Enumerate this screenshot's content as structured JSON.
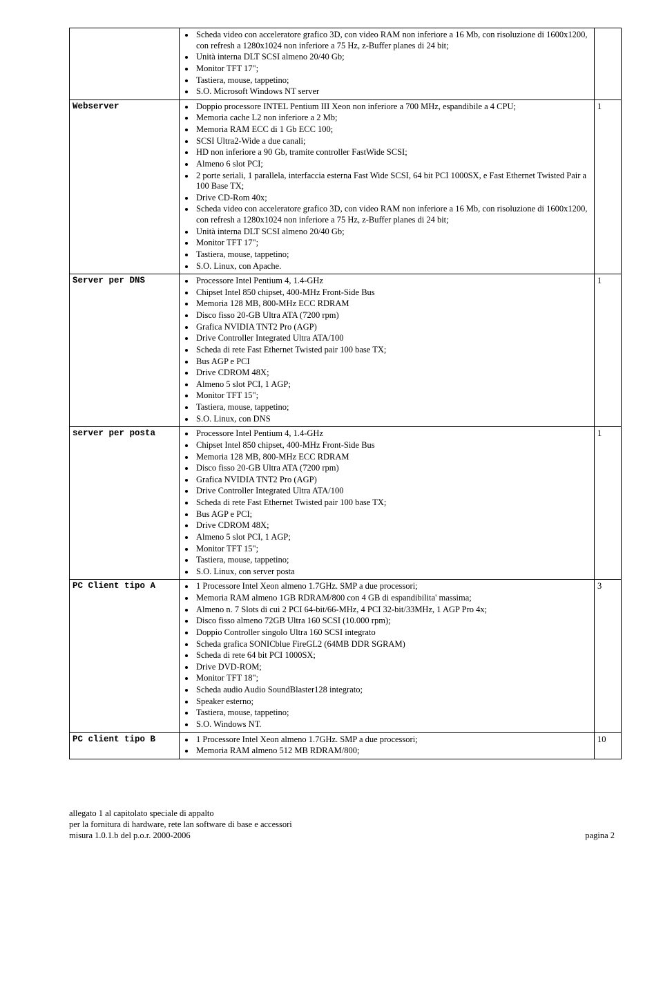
{
  "rows": [
    {
      "label": "",
      "qty": "",
      "items": [
        "Scheda video con acceleratore grafico 3D, con video RAM non inferiore a 16 Mb, con risoluzione di 1600x1200, con refresh a 1280x1024 non inferiore a 75 Hz, z-Buffer planes di 24 bit;",
        "Unità interna DLT SCSI almeno 20/40 Gb;",
        "Monitor TFT 17\";",
        "Tastiera, mouse, tappetino;",
        "S.O. Microsoft Windows NT server"
      ]
    },
    {
      "label": "Webserver",
      "qty": "1",
      "items": [
        "Doppio processore INTEL Pentium III Xeon non inferiore a 700 MHz, espandibile a 4 CPU;",
        "Memoria cache L2 non inferiore a 2 Mb;",
        "Memoria RAM ECC di 1 Gb ECC 100;",
        "SCSI Ultra2-Wide a due canali;",
        "HD non inferiore a 90 Gb, tramite controller FastWide SCSI;",
        "Almeno 6 slot PCI;",
        "2 porte seriali, 1 parallela, interfaccia esterna Fast Wide SCSI, 64 bit PCI 1000SX, e Fast Ethernet Twisted Pair a 100 Base TX;",
        "Drive CD-Rom 40x;",
        "Scheda video con acceleratore grafico 3D, con video RAM non inferiore a 16 Mb, con risoluzione di 1600x1200, con refresh a 1280x1024 non inferiore a 75 Hz, z-Buffer planes di 24 bit;",
        "Unità interna DLT SCSI almeno 20/40 Gb;",
        "Monitor TFT 17\";",
        "Tastiera, mouse, tappetino;",
        "S.O. Linux, con Apache."
      ]
    },
    {
      "label": "Server per DNS",
      "qty": "1",
      "items": [
        "Processore Intel Pentium 4, 1.4-GHz",
        "Chipset Intel 850 chipset, 400-MHz Front-Side Bus",
        "Memoria 128 MB, 800-MHz ECC RDRAM",
        "Disco fisso 20-GB Ultra ATA (7200 rpm)",
        "Grafica NVIDIA TNT2 Pro (AGP)",
        "Drive Controller Integrated Ultra ATA/100",
        "Scheda di rete Fast Ethernet Twisted pair 100 base TX;",
        "Bus AGP e PCI",
        "Drive CDROM 48X;",
        "Almeno 5 slot PCI, 1 AGP;",
        "Monitor TFT 15\";",
        "Tastiera, mouse, tappetino;",
        "S.O. Linux, con DNS"
      ]
    },
    {
      "label": "server per posta",
      "qty": "1",
      "items": [
        "Processore Intel Pentium 4, 1.4-GHz",
        "Chipset Intel 850 chipset, 400-MHz Front-Side Bus",
        "Memoria 128 MB, 800-MHz ECC RDRAM",
        "Disco fisso 20-GB Ultra ATA (7200 rpm)",
        "Grafica NVIDIA TNT2 Pro (AGP)",
        "Drive Controller Integrated Ultra ATA/100",
        "Scheda di rete Fast Ethernet Twisted pair 100 base TX;",
        "Bus AGP e PCI;",
        "Drive CDROM 48X;",
        "Almeno 5 slot PCI, 1 AGP;",
        "Monitor TFT 15\";",
        "Tastiera, mouse, tappetino;",
        "S.O. Linux, con server posta"
      ]
    },
    {
      "label": "PC Client tipo A",
      "qty": "3",
      "items": [
        "1 Processore Intel Xeon almeno 1.7GHz. SMP a due processori;",
        "Memoria RAM almeno 1GB RDRAM/800 con 4 GB di espandibilita' massima;",
        "Almeno n. 7 Slots di cui 2 PCI 64-bit/66-MHz, 4 PCI 32-bit/33MHz, 1 AGP Pro 4x;",
        "Disco fisso almeno 72GB Ultra 160 SCSI (10.000 rpm);",
        "Doppio Controller singolo Ultra 160 SCSI integrato",
        "Scheda grafica SONICblue FireGL2 (64MB DDR SGRAM)",
        "Scheda di rete 64 bit PCI 1000SX;",
        "Drive DVD-ROM;",
        "Monitor TFT 18\";",
        "Scheda audio Audio SoundBlaster128 integrato;",
        "Speaker esterno;",
        "Tastiera, mouse, tappetino;",
        "S.O. Windows NT."
      ]
    },
    {
      "label": "PC client tipo B",
      "qty": "10",
      "items": [
        "1 Processore Intel Xeon almeno 1.7GHz. SMP a due processori;",
        "Memoria RAM almeno 512 MB RDRAM/800;"
      ]
    }
  ],
  "footer": {
    "line1": "allegato 1 al capitolato speciale di appalto",
    "line2": "per la fornitura di hardware, rete lan software di base e accessori",
    "line3": "misura 1.0.1.b del p.o.r. 2000-2006",
    "page": "pagina 2"
  }
}
